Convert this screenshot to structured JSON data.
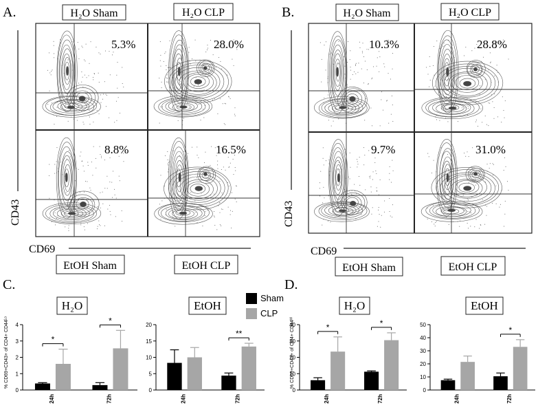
{
  "panel_letters": {
    "a": "A.",
    "b": "B.",
    "c": "C.",
    "d": "D."
  },
  "flow_panels": [
    {
      "id": "A",
      "top_labels": [
        "H₂O Sham",
        "H₂O CLP"
      ],
      "bottom_labels": [
        "EtOH Sham",
        "EtOH CLP"
      ],
      "y_axis_label": "CD43",
      "x_axis_label": "CD69",
      "percentages": [
        "5.3%",
        "28.0%",
        "8.8%",
        "16.5%"
      ]
    },
    {
      "id": "B",
      "top_labels": [
        "H₂O Sham",
        "H₂O CLP"
      ],
      "bottom_labels": [
        "EtOH Sham",
        "EtOH CLP"
      ],
      "y_axis_label": "CD43",
      "x_axis_label": "CD69",
      "percentages": [
        "10.3%",
        "28.8%",
        "9.7%",
        "31.0%"
      ]
    }
  ],
  "legend": {
    "items": [
      {
        "name": "Sham",
        "color": "#000000"
      },
      {
        "name": "CLP",
        "color": "#a6a6a6"
      }
    ]
  },
  "chart_data": [
    {
      "panel": "C",
      "title": "H₂O",
      "type": "bar",
      "ylabel": "% CD69+CD43+ of CD4+ CD44ᴸᵒ",
      "categories": [
        "24h",
        "72h"
      ],
      "ylim": [
        0,
        4
      ],
      "yticks": [
        0,
        1,
        2,
        3,
        4
      ],
      "series": [
        {
          "name": "Sham",
          "values": [
            0.4,
            0.3
          ],
          "errors": [
            0.05,
            0.15
          ]
        },
        {
          "name": "CLP",
          "values": [
            1.6,
            2.55
          ],
          "errors": [
            0.9,
            1.1
          ]
        }
      ],
      "annotations": [
        "*",
        "*"
      ]
    },
    {
      "panel": "C",
      "title": "EtOH",
      "type": "bar",
      "ylabel": "",
      "categories": [
        "24h",
        "72h"
      ],
      "ylim": [
        0,
        20
      ],
      "yticks": [
        0,
        5,
        10,
        15,
        20
      ],
      "series": [
        {
          "name": "Sham",
          "values": [
            8.3,
            4.4
          ],
          "errors": [
            4.0,
            0.8
          ]
        },
        {
          "name": "CLP",
          "values": [
            10.0,
            13.3
          ],
          "errors": [
            3.0,
            1.0
          ]
        }
      ],
      "annotations": [
        "",
        "**"
      ]
    },
    {
      "panel": "D",
      "title": "H₂O",
      "type": "bar",
      "ylabel": "% CD69+CD43+ of CD4+ CD44ᴴⁱ",
      "categories": [
        "24h",
        "72h"
      ],
      "ylim": [
        0,
        40
      ],
      "yticks": [
        0,
        10,
        20,
        30,
        40
      ],
      "series": [
        {
          "name": "Sham",
          "values": [
            6.0,
            11.2
          ],
          "errors": [
            1.5,
            0.5
          ]
        },
        {
          "name": "CLP",
          "values": [
            23.5,
            30.5
          ],
          "errors": [
            9.0,
            4.5
          ]
        }
      ],
      "annotations": [
        "*",
        "*"
      ]
    },
    {
      "panel": "D",
      "title": "EtOH",
      "type": "bar",
      "ylabel": "",
      "categories": [
        "24h",
        "72h"
      ],
      "ylim": [
        0,
        50
      ],
      "yticks": [
        0,
        10,
        20,
        30,
        40,
        50
      ],
      "series": [
        {
          "name": "Sham",
          "values": [
            7.5,
            10.5
          ],
          "errors": [
            0.8,
            2.5
          ]
        },
        {
          "name": "CLP",
          "values": [
            21.5,
            33.0
          ],
          "errors": [
            4.5,
            5.5
          ]
        }
      ],
      "annotations": [
        "",
        "*"
      ]
    }
  ]
}
